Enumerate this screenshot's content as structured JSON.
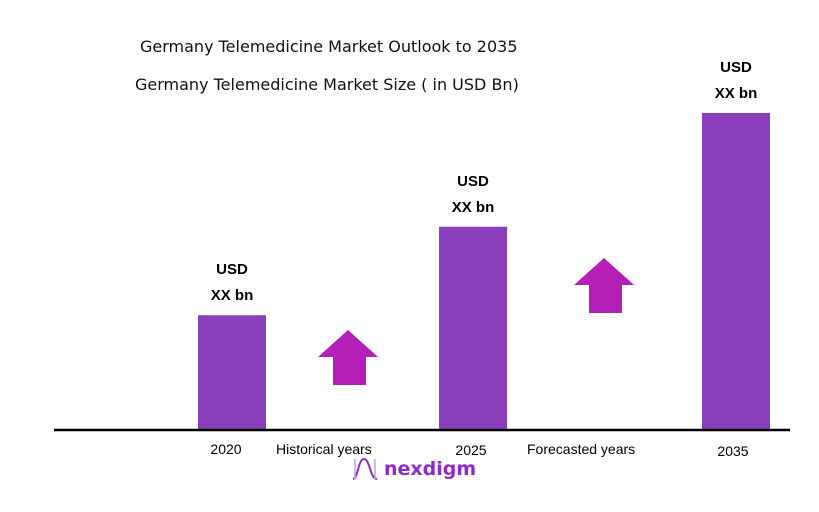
{
  "chart_data": {
    "type": "bar",
    "title": "Germany Telemedicine Market Outlook to 2035",
    "subtitle": "Germany Telemedicine  Market Size  ( in USD Bn)",
    "categories": [
      "2020",
      "2025",
      "2035"
    ],
    "values": [
      36,
      64,
      100
    ],
    "data_labels": [
      {
        "line1": "USD",
        "line2": "XX bn"
      },
      {
        "line1": "USD",
        "line2": "XX bn"
      },
      {
        "line1": "USD",
        "line2": "XX bn"
      }
    ],
    "annotations": [
      "Historical years",
      "Forecasted years"
    ],
    "ylim": [
      0,
      100
    ],
    "grid": false,
    "colors": {
      "bar": "#8a40bd",
      "arrow": "#b41fb8",
      "axis": "#000000"
    }
  },
  "logo": {
    "text": "nexdigm"
  }
}
